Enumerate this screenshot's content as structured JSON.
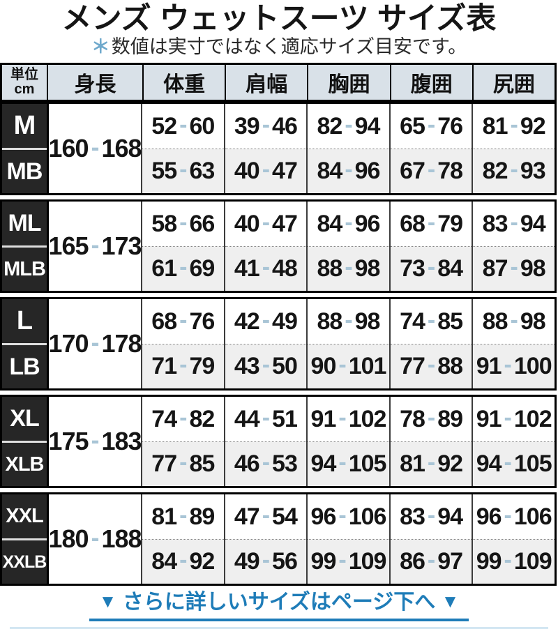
{
  "page": {
    "title": "メンズ ウェットスーツ サイズ表",
    "subtitle_mark": "＊",
    "subtitle_text": "数値は実寸ではなく適応サイズ目安です。"
  },
  "table": {
    "unit_label_top": "単位",
    "unit_label_bottom": "cm",
    "columns": [
      "身長",
      "体重",
      "肩幅",
      "胸囲",
      "腹囲",
      "尻囲"
    ],
    "groups": [
      {
        "sizes": [
          "M",
          "MB"
        ],
        "height": "160-168",
        "rows": [
          [
            "52-60",
            "39-46",
            "82-94",
            "65-76",
            "81-92"
          ],
          [
            "55-63",
            "40-47",
            "84-96",
            "67-78",
            "82-93"
          ]
        ]
      },
      {
        "sizes": [
          "ML",
          "MLB"
        ],
        "height": "165-173",
        "rows": [
          [
            "58-66",
            "40-47",
            "84-96",
            "68-79",
            "83-94"
          ],
          [
            "61-69",
            "41-48",
            "88-98",
            "73-84",
            "87-98"
          ]
        ]
      },
      {
        "sizes": [
          "L",
          "LB"
        ],
        "height": "170-178",
        "rows": [
          [
            "68-76",
            "42-49",
            "88-98",
            "74-85",
            "88-98"
          ],
          [
            "71-79",
            "43-50",
            "90-101",
            "77-88",
            "91-100"
          ]
        ]
      },
      {
        "sizes": [
          "XL",
          "XLB"
        ],
        "height": "175-183",
        "rows": [
          [
            "74-82",
            "44-51",
            "91-102",
            "78-89",
            "91-102"
          ],
          [
            "77-85",
            "46-53",
            "94-105",
            "81-92",
            "94-105"
          ]
        ]
      },
      {
        "sizes": [
          "XXL",
          "XXLB"
        ],
        "height": "180-188",
        "rows": [
          [
            "81-89",
            "47-54",
            "96-106",
            "83-94",
            "96-106"
          ],
          [
            "84-92",
            "49-56",
            "99-109",
            "86-97",
            "99-109"
          ]
        ]
      }
    ]
  },
  "footer": {
    "arrow_left": "▼",
    "link_text": "さらに詳しいサイズはページ下へ",
    "arrow_right": "▼"
  },
  "colors": {
    "header_bg": "#d9e1e8",
    "size_cell_bg": "#262626",
    "alt_row_bg": "#efefef",
    "range_dash_blue": "#a9c5d6",
    "accent_blue": "#1e7cb8",
    "subtitle_mark_blue": "#6fa9cc"
  }
}
